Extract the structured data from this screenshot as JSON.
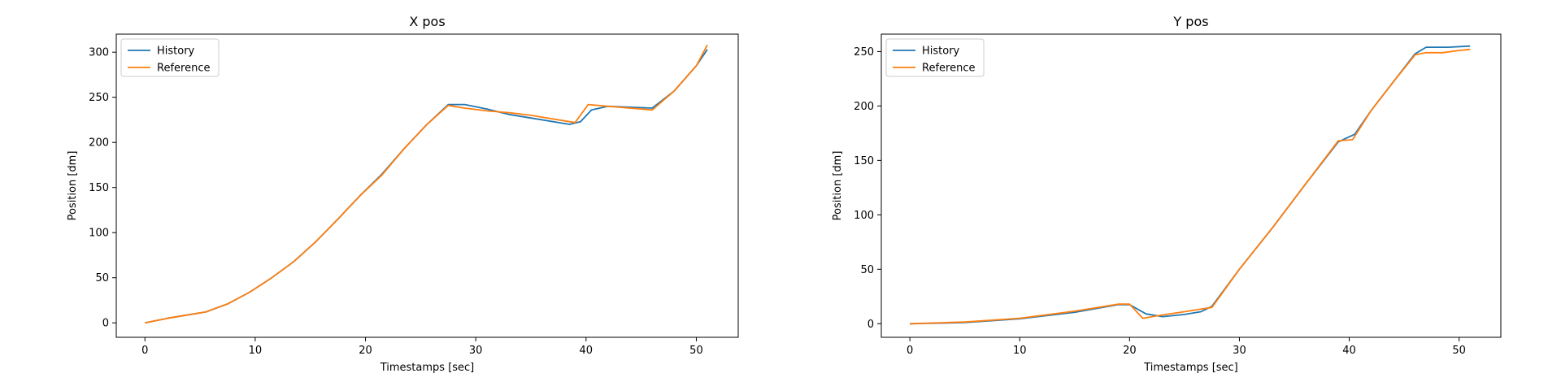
{
  "chart_data": [
    {
      "type": "line",
      "title": "X pos",
      "xlabel": "Timestamps [sec]",
      "ylabel": "Position [dm]",
      "xlim": [
        -2.6,
        53.8
      ],
      "ylim": [
        -16,
        320
      ],
      "xticks": [
        0,
        10,
        20,
        30,
        40,
        50
      ],
      "yticks": [
        0,
        50,
        100,
        150,
        200,
        250,
        300
      ],
      "grid": false,
      "legend": "top-left",
      "series": [
        {
          "name": "History",
          "color": "#1f77b4",
          "x": [
            0,
            2,
            4,
            5.5,
            7.5,
            9.5,
            11.5,
            13.5,
            15.5,
            17.5,
            19.5,
            21.5,
            23.5,
            25.5,
            27.5,
            29,
            31,
            33,
            35,
            38.5,
            39.5,
            40.5,
            42,
            44,
            46,
            48,
            50,
            51
          ],
          "y": [
            0,
            5,
            9,
            12,
            21,
            34,
            50,
            68,
            90,
            115,
            141,
            165,
            193,
            219,
            242,
            242,
            237,
            231,
            227,
            220,
            223,
            236,
            240,
            239,
            238,
            257,
            285,
            303
          ]
        },
        {
          "name": "Reference",
          "color": "#ff7f0e",
          "x": [
            0,
            2,
            4,
            5.5,
            7.5,
            9.5,
            11.5,
            13.5,
            15.5,
            17.5,
            19.5,
            21.5,
            23.5,
            25.5,
            27.5,
            29,
            31,
            33,
            35,
            39,
            40.2,
            42,
            44,
            46,
            48,
            50,
            51
          ],
          "y": [
            0,
            5,
            9,
            12,
            21,
            34,
            50,
            68,
            90,
            115,
            141,
            164,
            193,
            219,
            241,
            238,
            235,
            233,
            230,
            222,
            242,
            240,
            238,
            236,
            257,
            285,
            308
          ]
        }
      ]
    },
    {
      "type": "line",
      "title": "Y pos",
      "xlabel": "Timestamps [sec]",
      "ylabel": "Position [dm]",
      "xlim": [
        -2.6,
        53.8
      ],
      "ylim": [
        -12.5,
        266
      ],
      "xticks": [
        0,
        10,
        20,
        30,
        40,
        50
      ],
      "yticks": [
        0,
        50,
        100,
        150,
        200,
        250
      ],
      "grid": false,
      "legend": "top-left",
      "series": [
        {
          "name": "History",
          "color": "#1f77b4",
          "x": [
            0,
            5,
            10,
            15,
            19,
            20,
            21.5,
            23,
            25,
            26.5,
            27.5,
            30,
            33,
            36,
            39,
            40.5,
            42,
            44,
            46,
            47,
            49,
            51
          ],
          "y": [
            0,
            1,
            4.5,
            10.5,
            17.5,
            17.5,
            9,
            6.5,
            8.5,
            11,
            16,
            50,
            88,
            128,
            167,
            174,
            196,
            222,
            248,
            254,
            254,
            255
          ]
        },
        {
          "name": "Reference",
          "color": "#ff7f0e",
          "x": [
            0,
            5,
            10,
            15,
            19,
            20,
            21.2,
            23,
            25,
            27.5,
            30,
            33,
            36,
            39,
            40.3,
            42,
            44,
            46,
            47,
            48.5,
            50,
            51
          ],
          "y": [
            0,
            1.5,
            5,
            11.5,
            18,
            18,
            5,
            8,
            11,
            15,
            50,
            88,
            128,
            168,
            169,
            196,
            222,
            247,
            249,
            249,
            251,
            252
          ]
        }
      ]
    }
  ]
}
